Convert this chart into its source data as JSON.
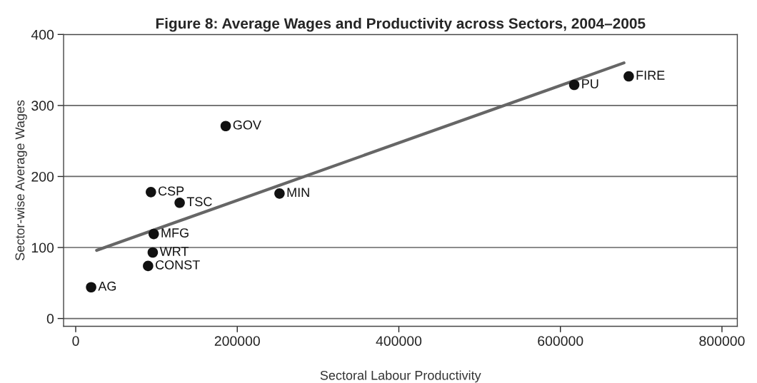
{
  "chart_data": {
    "type": "scatter",
    "title": "Figure 8: Average Wages and Productivity across Sectors, 2004–2005",
    "xlabel": "Sectoral Labour Productivity",
    "ylabel": "Sector-wise Average Wages",
    "series": [
      {
        "color": "#111111",
        "marker": "circle",
        "x": [
          19100,
          93100,
          128700,
          185700,
          252300,
          96600,
          95400,
          89600,
          617100,
          684600
        ],
        "values": [
          44,
          178,
          163,
          271,
          176,
          119,
          93,
          74,
          329,
          341
        ]
      },
      {
        "type": "line",
        "color": "#666666",
        "marker": "none",
        "line_style": "solid",
        "x": [
          25900,
          678700
        ],
        "values": [
          96,
          360
        ]
      }
    ],
    "annotations": [
      {
        "text": "AG",
        "x": 19100,
        "y": 44
      },
      {
        "text": "CSP",
        "x": 93100,
        "y": 178
      },
      {
        "text": "TSC",
        "x": 128700,
        "y": 163
      },
      {
        "text": "GOV",
        "x": 185700,
        "y": 271
      },
      {
        "text": "MIN",
        "x": 252300,
        "y": 176
      },
      {
        "text": "MFG",
        "x": 96600,
        "y": 119
      },
      {
        "text": "WRT",
        "x": 95400,
        "y": 93
      },
      {
        "text": "CONST",
        "x": 89600,
        "y": 74
      },
      {
        "text": "PU",
        "x": 617100,
        "y": 329
      },
      {
        "text": "FIRE",
        "x": 684600,
        "y": 341
      }
    ],
    "xlim": [
      -15000,
      819000
    ],
    "xticks": [
      0,
      200000,
      400000,
      600000,
      800000
    ],
    "ylim": [
      -11,
      400
    ],
    "yticks": [
      0,
      100,
      200,
      300,
      400
    ],
    "grid": "y",
    "legend": false
  }
}
